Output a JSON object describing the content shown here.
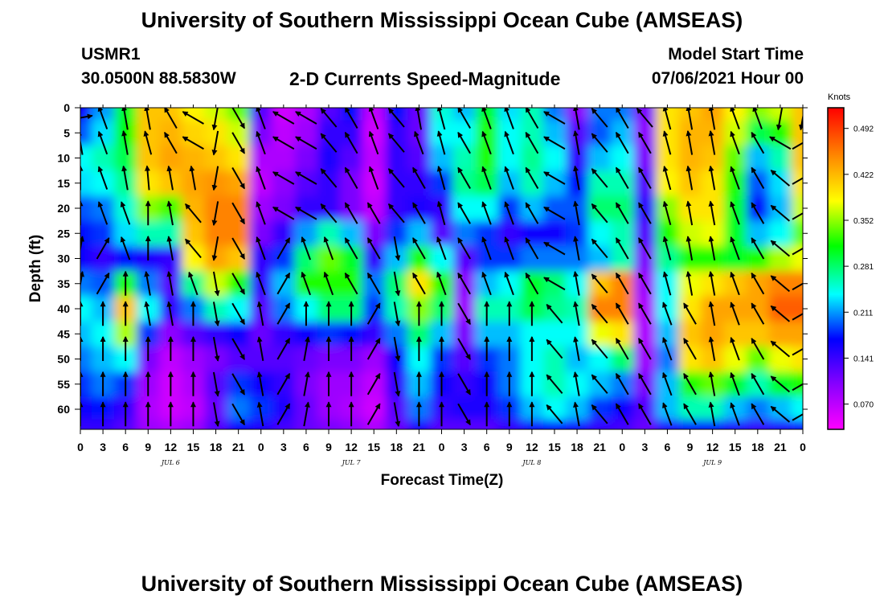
{
  "header": {
    "title_top": "University of Southern Mississippi Ocean Cube (AMSEAS)",
    "title_bottom": "University of Southern Mississippi Ocean Cube (AMSEAS)",
    "station": "USMR1",
    "coords": "30.0500N  88.5830W",
    "plot_title": "2-D Currents Speed-Magnitude",
    "model_start_label": "Model Start Time",
    "model_start_value": "07/06/2021 Hour 00"
  },
  "chart_data": {
    "type": "heatmap",
    "title": "2-D Currents Speed-Magnitude",
    "xlabel": "Forecast Time(Z)",
    "ylabel": "Depth (ft)",
    "x_ticks": [
      "0",
      "3",
      "6",
      "9",
      "12",
      "15",
      "18",
      "21",
      "0",
      "3",
      "6",
      "9",
      "12",
      "15",
      "18",
      "21",
      "0",
      "3",
      "6",
      "9",
      "12",
      "15",
      "18",
      "21",
      "0",
      "3",
      "6",
      "9",
      "12",
      "15",
      "18",
      "21",
      "0"
    ],
    "day_labels": [
      "JUL 6",
      "JUL 7",
      "JUL 8",
      "JUL 9"
    ],
    "y_ticks": [
      0,
      5,
      10,
      15,
      20,
      25,
      30,
      35,
      40,
      45,
      50,
      55,
      60
    ],
    "ylim": [
      0,
      64
    ],
    "colorbar": {
      "unit": "Knots",
      "ticks": [
        "0.492",
        "0.422",
        "0.352",
        "0.281",
        "0.211",
        "0.141",
        "0.070"
      ],
      "range": [
        0.0,
        0.51
      ],
      "colors": [
        "#ff00ff",
        "#8800ff",
        "#0000ff",
        "#00ffff",
        "#00ff00",
        "#ffff00",
        "#ff8800",
        "#ff0000"
      ]
    },
    "rows_depth_ft": [
      0,
      5,
      10,
      15,
      20,
      25,
      30,
      35,
      40,
      45,
      50,
      55,
      60,
      64
    ],
    "speed_grid_knots": [
      [
        0.14,
        0.19,
        0.28,
        0.4,
        0.4,
        0.37,
        0.35,
        0.32,
        0.1,
        0.03,
        0.05,
        0.1,
        0.15,
        0.04,
        0.15,
        0.09,
        0.23,
        0.2,
        0.28,
        0.21,
        0.24,
        0.18,
        0.07,
        0.18,
        0.18,
        0.08,
        0.38,
        0.4,
        0.42,
        0.37,
        0.33,
        0.35,
        0.4
      ],
      [
        0.17,
        0.21,
        0.29,
        0.4,
        0.41,
        0.39,
        0.38,
        0.35,
        0.08,
        0.04,
        0.06,
        0.12,
        0.12,
        0.03,
        0.12,
        0.09,
        0.22,
        0.22,
        0.3,
        0.22,
        0.24,
        0.2,
        0.1,
        0.17,
        0.2,
        0.07,
        0.38,
        0.41,
        0.41,
        0.35,
        0.27,
        0.3,
        0.4
      ],
      [
        0.22,
        0.24,
        0.27,
        0.4,
        0.42,
        0.41,
        0.4,
        0.38,
        0.05,
        0.05,
        0.08,
        0.13,
        0.1,
        0.04,
        0.12,
        0.1,
        0.2,
        0.24,
        0.3,
        0.22,
        0.25,
        0.22,
        0.12,
        0.2,
        0.22,
        0.08,
        0.38,
        0.41,
        0.4,
        0.32,
        0.2,
        0.24,
        0.4
      ],
      [
        0.21,
        0.22,
        0.25,
        0.38,
        0.4,
        0.42,
        0.43,
        0.42,
        0.04,
        0.07,
        0.1,
        0.12,
        0.08,
        0.03,
        0.12,
        0.12,
        0.16,
        0.25,
        0.27,
        0.2,
        0.24,
        0.2,
        0.15,
        0.24,
        0.24,
        0.1,
        0.37,
        0.4,
        0.38,
        0.3,
        0.17,
        0.21,
        0.38
      ],
      [
        0.17,
        0.18,
        0.23,
        0.33,
        0.31,
        0.41,
        0.44,
        0.44,
        0.06,
        0.08,
        0.12,
        0.12,
        0.08,
        0.04,
        0.12,
        0.13,
        0.12,
        0.22,
        0.22,
        0.16,
        0.2,
        0.17,
        0.17,
        0.26,
        0.26,
        0.12,
        0.33,
        0.38,
        0.38,
        0.28,
        0.15,
        0.2,
        0.35
      ],
      [
        0.15,
        0.16,
        0.21,
        0.24,
        0.24,
        0.4,
        0.44,
        0.44,
        0.08,
        0.12,
        0.19,
        0.24,
        0.2,
        0.08,
        0.16,
        0.2,
        0.1,
        0.18,
        0.16,
        0.12,
        0.14,
        0.14,
        0.16,
        0.22,
        0.24,
        0.1,
        0.3,
        0.35,
        0.36,
        0.28,
        0.2,
        0.22,
        0.32
      ],
      [
        0.14,
        0.12,
        0.15,
        0.13,
        0.12,
        0.37,
        0.42,
        0.4,
        0.12,
        0.16,
        0.26,
        0.32,
        0.28,
        0.12,
        0.2,
        0.3,
        0.22,
        0.1,
        0.16,
        0.16,
        0.18,
        0.18,
        0.18,
        0.2,
        0.24,
        0.08,
        0.25,
        0.3,
        0.3,
        0.28,
        0.3,
        0.34,
        0.36
      ],
      [
        0.18,
        0.17,
        0.3,
        0.18,
        0.1,
        0.25,
        0.35,
        0.3,
        0.12,
        0.2,
        0.3,
        0.3,
        0.3,
        0.18,
        0.26,
        0.38,
        0.3,
        0.07,
        0.2,
        0.22,
        0.28,
        0.26,
        0.22,
        0.4,
        0.44,
        0.06,
        0.22,
        0.36,
        0.38,
        0.4,
        0.42,
        0.44,
        0.44
      ],
      [
        0.22,
        0.2,
        0.4,
        0.22,
        0.12,
        0.18,
        0.24,
        0.22,
        0.1,
        0.18,
        0.22,
        0.26,
        0.26,
        0.16,
        0.24,
        0.33,
        0.26,
        0.06,
        0.24,
        0.24,
        0.27,
        0.25,
        0.24,
        0.44,
        0.44,
        0.05,
        0.22,
        0.38,
        0.42,
        0.42,
        0.42,
        0.46,
        0.46
      ],
      [
        0.2,
        0.22,
        0.34,
        0.16,
        0.07,
        0.1,
        0.12,
        0.14,
        0.09,
        0.12,
        0.14,
        0.16,
        0.15,
        0.12,
        0.18,
        0.26,
        0.2,
        0.08,
        0.2,
        0.2,
        0.22,
        0.22,
        0.22,
        0.36,
        0.38,
        0.05,
        0.2,
        0.4,
        0.42,
        0.4,
        0.4,
        0.42,
        0.42
      ],
      [
        0.18,
        0.2,
        0.22,
        0.08,
        0.04,
        0.06,
        0.08,
        0.1,
        0.1,
        0.1,
        0.09,
        0.08,
        0.08,
        0.06,
        0.14,
        0.22,
        0.16,
        0.1,
        0.16,
        0.18,
        0.22,
        0.24,
        0.2,
        0.22,
        0.26,
        0.06,
        0.18,
        0.38,
        0.4,
        0.36,
        0.32,
        0.36,
        0.38
      ],
      [
        0.16,
        0.18,
        0.16,
        0.06,
        0.03,
        0.05,
        0.1,
        0.16,
        0.14,
        0.12,
        0.08,
        0.06,
        0.06,
        0.04,
        0.12,
        0.2,
        0.14,
        0.12,
        0.14,
        0.18,
        0.22,
        0.24,
        0.22,
        0.2,
        0.18,
        0.08,
        0.2,
        0.3,
        0.32,
        0.28,
        0.24,
        0.28,
        0.3
      ],
      [
        0.14,
        0.15,
        0.12,
        0.05,
        0.03,
        0.04,
        0.09,
        0.18,
        0.16,
        0.13,
        0.09,
        0.06,
        0.05,
        0.03,
        0.1,
        0.18,
        0.12,
        0.13,
        0.13,
        0.16,
        0.2,
        0.22,
        0.2,
        0.16,
        0.14,
        0.1,
        0.2,
        0.24,
        0.24,
        0.2,
        0.18,
        0.2,
        0.22
      ],
      [
        0.12,
        0.12,
        0.1,
        0.06,
        0.05,
        0.06,
        0.1,
        0.14,
        0.13,
        0.11,
        0.09,
        0.08,
        0.07,
        0.05,
        0.09,
        0.13,
        0.1,
        0.1,
        0.1,
        0.12,
        0.14,
        0.15,
        0.14,
        0.12,
        0.11,
        0.09,
        0.13,
        0.15,
        0.15,
        0.13,
        0.12,
        0.13,
        0.14
      ]
    ],
    "vector_rows_depth_ft": [
      2,
      7,
      14,
      21,
      28,
      35,
      41,
      48,
      55,
      61
    ],
    "vector_dir_deg": [
      [
        80,
        -20,
        -10,
        -10,
        -30,
        -60,
        -170,
        150,
        -20,
        -60,
        -60,
        -40,
        -30,
        -20,
        -40,
        -10,
        -15,
        -30,
        -20,
        -20,
        -30,
        -60,
        -10,
        -40,
        -30,
        -40,
        -15,
        -10,
        -10,
        -20,
        -20,
        -170,
        -170
      ],
      [
        -10,
        -20,
        -10,
        -15,
        -30,
        -60,
        -170,
        150,
        -20,
        -60,
        -60,
        -40,
        -30,
        -20,
        -40,
        -20,
        -15,
        -30,
        -20,
        -20,
        -30,
        -60,
        -10,
        -40,
        -30,
        -30,
        -15,
        -10,
        -10,
        -20,
        -30,
        -60,
        60
      ],
      [
        0,
        -20,
        -10,
        -5,
        -10,
        -10,
        -170,
        150,
        -20,
        -60,
        -60,
        -40,
        -30,
        -20,
        -40,
        -30,
        -15,
        -30,
        -20,
        -20,
        -30,
        -60,
        -10,
        -40,
        -30,
        -30,
        -15,
        -10,
        -10,
        -20,
        -30,
        -50,
        60
      ],
      [
        0,
        -20,
        -20,
        0,
        -10,
        -40,
        -170,
        150,
        -20,
        -60,
        -60,
        -40,
        -30,
        -30,
        -40,
        -30,
        -15,
        -30,
        -20,
        -20,
        -30,
        -60,
        -10,
        -40,
        -30,
        -30,
        -15,
        -10,
        -10,
        -20,
        -30,
        -50,
        60
      ],
      [
        10,
        30,
        -20,
        0,
        -10,
        -40,
        -170,
        150,
        -20,
        30,
        -20,
        -20,
        -30,
        -30,
        170,
        -30,
        -20,
        -30,
        -20,
        -20,
        -30,
        -60,
        -10,
        -40,
        -30,
        -30,
        -15,
        -10,
        -10,
        -20,
        -30,
        -50,
        60
      ],
      [
        10,
        30,
        0,
        -10,
        -10,
        -20,
        170,
        150,
        -20,
        30,
        -20,
        -20,
        -30,
        -30,
        170,
        -30,
        -20,
        -30,
        -20,
        -20,
        -30,
        -60,
        -10,
        -40,
        -30,
        -30,
        -15,
        -10,
        -10,
        -20,
        -30,
        -50,
        60
      ],
      [
        0,
        0,
        0,
        -10,
        -10,
        0,
        170,
        150,
        -10,
        30,
        0,
        0,
        0,
        30,
        170,
        0,
        0,
        150,
        0,
        0,
        0,
        -40,
        -10,
        -40,
        -30,
        -30,
        -20,
        -30,
        -10,
        -20,
        -30,
        -50,
        60
      ],
      [
        0,
        0,
        0,
        0,
        0,
        0,
        170,
        150,
        -10,
        30,
        10,
        0,
        0,
        30,
        170,
        0,
        0,
        150,
        0,
        0,
        0,
        -40,
        -10,
        -40,
        -30,
        -30,
        -20,
        -30,
        -10,
        -20,
        -30,
        -50,
        60
      ],
      [
        0,
        0,
        0,
        0,
        0,
        0,
        170,
        150,
        -10,
        30,
        10,
        0,
        0,
        30,
        170,
        0,
        0,
        150,
        0,
        0,
        0,
        -40,
        -10,
        -40,
        -30,
        -30,
        -20,
        -30,
        -10,
        -20,
        -30,
        -50,
        60
      ],
      [
        0,
        0,
        0,
        0,
        0,
        0,
        170,
        150,
        -10,
        30,
        10,
        0,
        0,
        30,
        170,
        0,
        0,
        150,
        0,
        0,
        0,
        -40,
        -10,
        -40,
        -30,
        -30,
        -20,
        -30,
        -10,
        -20,
        -30,
        -50,
        60
      ]
    ]
  }
}
